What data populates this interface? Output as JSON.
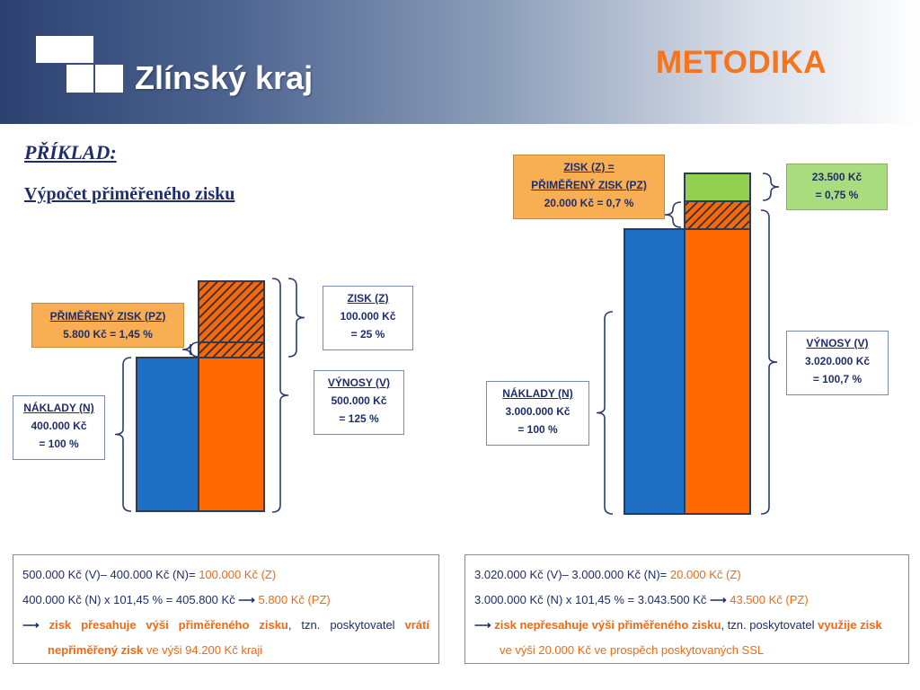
{
  "header": {
    "brand": "Zlínský kraj",
    "slide_title": "METODIKA"
  },
  "intro": {
    "heading": "PŘÍKLAD:",
    "subtitle": "Výpočet přiměřeného zisku"
  },
  "colors": {
    "naklady": "#1f6fc5",
    "vynosy": "#ff6a00",
    "zisk_hatch": "#f26a10",
    "zisk_extra": "#92d050",
    "outline": "#2e3b55"
  },
  "chart_data": [
    {
      "type": "bar",
      "name": "left-example",
      "bars": [
        {
          "label": "NÁKLADY (N)",
          "value": 400000,
          "percent": 100
        },
        {
          "label": "VÝNOSY (V)",
          "value": 500000,
          "percent": 125
        }
      ],
      "segments": [
        {
          "label": "PŘIMĚŘENÝ ZISK (PZ)",
          "value": 5800,
          "percent": 1.45
        },
        {
          "label": "ZISK (Z)",
          "value": 100000,
          "percent": 25
        }
      ]
    },
    {
      "type": "bar",
      "name": "right-example",
      "bars": [
        {
          "label": "NÁKLADY (N)",
          "value": 3000000,
          "percent": 100
        },
        {
          "label": "VÝNOSY (V)",
          "value": 3020000,
          "percent": 100.7
        }
      ],
      "segments": [
        {
          "label": "ZISK (Z) = PŘIMĚŘENÝ ZISK (PZ)",
          "value": 20000,
          "percent": 0.7
        },
        {
          "label": "extra",
          "value": 23500,
          "percent": 0.75
        }
      ]
    }
  ],
  "left": {
    "pz_box": {
      "line1": "PŘIMĚŘENÝ ZISK (PZ)",
      "line2": "5.800 Kč = 1,45 %"
    },
    "zisk_box": {
      "line1": "ZISK (Z)",
      "line2": "100.000 Kč",
      "line3": "= 25 %"
    },
    "vynosy_box": {
      "line1": "VÝNOSY (V)",
      "line2": "500.000 Kč",
      "line3": "= 125 %"
    },
    "naklady_box": {
      "line1": "NÁKLADY (N)",
      "line2": "400.000 Kč",
      "line3": "= 100 %"
    },
    "formula": {
      "l1_a": "500.000 Kč (V)– 400.000 Kč (N)= ",
      "l1_b": "100.000 Kč (Z)",
      "l2_a": "400.000 Kč (N) x 101,45 % = 405.800 Kč ",
      "l2_arrow": "⟶",
      "l2_b": " 5.800 Kč (PZ)",
      "l3_arrow": "⟶",
      "l3_a": "zisk přesahuje výši přiměřeného zisku",
      "l3_b": ", tzn. poskytovatel ",
      "l3_c": "vrátí",
      "l4_a": "nepřiměřený zisk",
      "l4_b": " ve výši 94.200 Kč kraji"
    }
  },
  "right": {
    "zpz_box": {
      "line1": "ZISK (Z) =",
      "line2": "PŘIMĚŘENÝ ZISK (PZ)",
      "line3": "20.000 Kč = 0,7 %"
    },
    "extra_box": {
      "line1": "23.500 Kč",
      "line2": "= 0,75 %"
    },
    "vynosy_box": {
      "line1": "VÝNOSY (V)",
      "line2": "3.020.000 Kč",
      "line3": "= 100,7 %"
    },
    "naklady_box": {
      "line1": "NÁKLADY (N)",
      "line2": "3.000.000 Kč",
      "line3": "= 100 %"
    },
    "formula": {
      "l1_a": "3.020.000 Kč (V)– 3.000.000 Kč (N)= ",
      "l1_b": "20.000 Kč (Z)",
      "l2_a": "3.000.000 Kč (N) x 101,45 % = 3.043.500 Kč ",
      "l2_arrow": "⟶",
      "l2_b": " 43.500 Kč (PZ)",
      "l3_arrow": "⟶",
      "l3_a": "zisk nepřesahuje výši přiměřeného zisku",
      "l3_b": ", tzn. poskytovatel ",
      "l3_c": "využije zisk",
      "l4_a": "ve výši 20.000 Kč ve prospěch poskytovaných SSL"
    }
  }
}
